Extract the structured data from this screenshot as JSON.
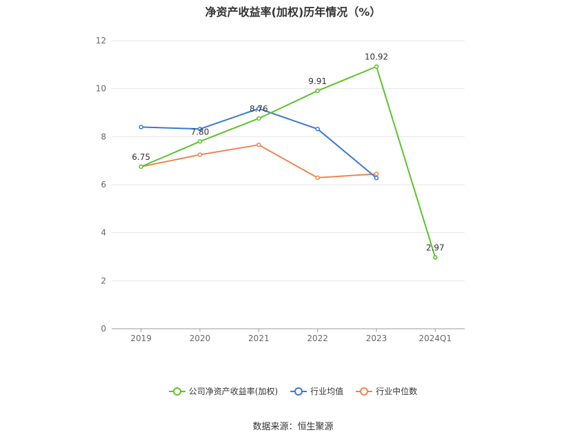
{
  "chart_data": {
    "type": "line",
    "title": "净资产收益率(加权)历年情况（%）",
    "categories": [
      "2019",
      "2020",
      "2021",
      "2022",
      "2023",
      "2024Q1"
    ],
    "ylim": [
      0,
      12
    ],
    "yticks": [
      0,
      2,
      4,
      6,
      8,
      10,
      12
    ],
    "grid": true,
    "legend_position": "bottom",
    "series": [
      {
        "name": "公司净资产收益率(加权)",
        "color": "#5ac229",
        "values": [
          6.75,
          7.8,
          8.76,
          9.91,
          10.92,
          2.97
        ],
        "labels": [
          "6.75",
          "7.80",
          "8.76",
          "9.91",
          "10.92",
          "2.97"
        ]
      },
      {
        "name": "行业均值",
        "color": "#3a76d6",
        "values": [
          8.4,
          8.32,
          9.17,
          8.32,
          6.28,
          null
        ]
      },
      {
        "name": "行业中位数",
        "color": "#ef8354",
        "values": [
          6.75,
          7.25,
          7.66,
          6.29,
          6.45,
          null
        ]
      }
    ]
  },
  "source": "数据来源：恒生聚源"
}
